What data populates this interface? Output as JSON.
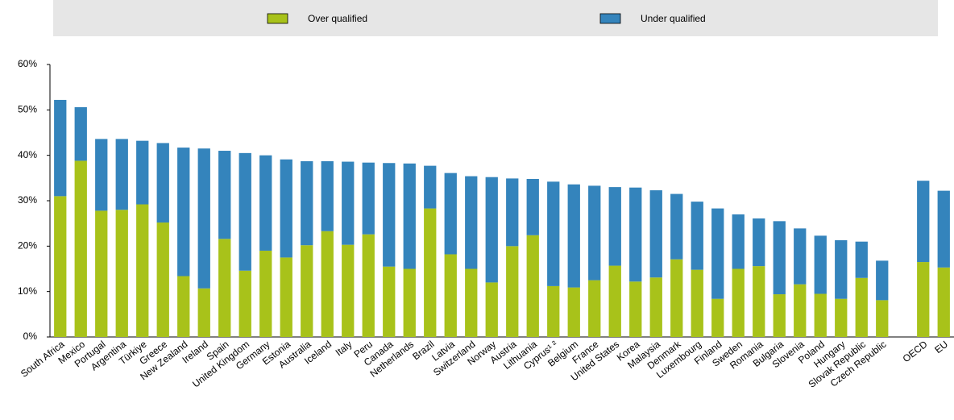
{
  "chart_data": {
    "type": "stacked_bar",
    "categories": [
      "South Africa",
      "Mexico",
      "Portugal",
      "Argentina",
      "Türkiye",
      "Greece",
      "New Zealand",
      "Ireland",
      "Spain",
      "United Kingdom",
      "Germany",
      "Estonia",
      "Australia",
      "Iceland",
      "Italy",
      "Peru",
      "Canada",
      "Netherlands",
      "Brazil",
      "Latvia",
      "Switzerland",
      "Norway",
      "Austria",
      "Lithuania",
      "Cyprus¹ ²",
      "Belgium",
      "France",
      "United States",
      "Korea",
      "Malaysia",
      "Denmark",
      "Luxembourg",
      "Finland",
      "Sweden",
      "Romania",
      "Bulgaria",
      "Slovenia",
      "Poland",
      "Hungary",
      "Slovak Republic",
      "Czech Republic",
      null,
      "OECD",
      "EU"
    ],
    "series": [
      {
        "name": "Over qualified",
        "color": "#a8c21a",
        "values": [
          31.0,
          38.8,
          27.8,
          28.0,
          29.2,
          25.2,
          13.4,
          10.7,
          21.6,
          14.6,
          19.0,
          17.5,
          20.2,
          23.3,
          20.3,
          22.6,
          15.5,
          15.0,
          28.3,
          18.2,
          15.0,
          12.0,
          20.0,
          22.4,
          11.2,
          10.9,
          12.5,
          15.7,
          12.2,
          13.1,
          17.1,
          14.8,
          8.4,
          15.0,
          15.6,
          9.4,
          11.6,
          9.5,
          8.4,
          13.0,
          8.1,
          null,
          16.5,
          15.3
        ]
      },
      {
        "name": "Under qualified",
        "color": "#3484bc",
        "values": [
          21.2,
          11.8,
          15.8,
          15.6,
          14.0,
          17.5,
          28.3,
          30.8,
          19.4,
          25.9,
          21.0,
          21.6,
          18.5,
          15.4,
          18.3,
          15.8,
          22.8,
          23.2,
          9.4,
          17.9,
          20.4,
          23.2,
          14.9,
          12.4,
          23.0,
          22.7,
          20.8,
          17.3,
          20.7,
          19.2,
          14.4,
          15.0,
          19.9,
          12.0,
          10.5,
          16.1,
          12.3,
          12.8,
          12.9,
          8.0,
          8.7,
          null,
          17.9,
          16.9
        ]
      }
    ],
    "ylim": [
      0,
      60
    ],
    "yticks": [
      {
        "value": 0,
        "label": "0%"
      },
      {
        "value": 10,
        "label": "10%"
      },
      {
        "value": 20,
        "label": "20%"
      },
      {
        "value": 30,
        "label": "30%"
      },
      {
        "value": 40,
        "label": "40%"
      },
      {
        "value": 50,
        "label": "50%"
      },
      {
        "value": 60,
        "label": "60%"
      }
    ],
    "legend": "top"
  }
}
